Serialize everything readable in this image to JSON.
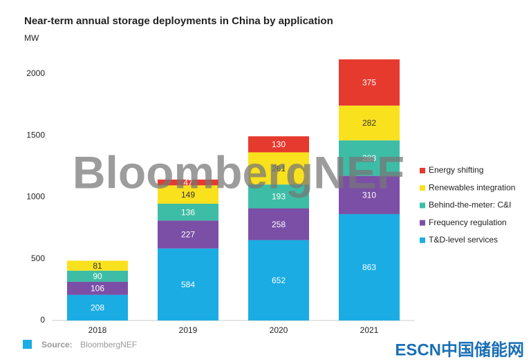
{
  "chart_data": {
    "type": "stacked_bar",
    "title": "Near-term annual storage deployments in China by application",
    "y_label": "MW",
    "watermark": "BloombergNEF",
    "source_label": "Source:",
    "source": "BloombergNEF",
    "logo": "ESCN中国储能网",
    "categories": [
      "2018",
      "2019",
      "2020",
      "2021"
    ],
    "series": [
      {
        "name": "T&D-level services",
        "color": "#1aace3",
        "values": [
          208,
          584,
          652,
          863
        ]
      },
      {
        "name": "Frequency regulation",
        "color": "#7b4fa6",
        "values": [
          106,
          227,
          258,
          310
        ]
      },
      {
        "name": "Behind-the-meter: C&I",
        "color": "#3dbda5",
        "values": [
          90,
          136,
          193,
          288
        ]
      },
      {
        "name": "Renewables integration",
        "color": "#f9e11e",
        "values": [
          81,
          149,
          261,
          282
        ]
      },
      {
        "name": "Energy shifting",
        "color": "#e63a2e",
        "values": [
          null,
          47,
          130,
          375
        ]
      }
    ],
    "ylim": [
      0,
      2200
    ],
    "yticks": [
      0,
      500,
      1000,
      1500,
      2000
    ],
    "grid": false
  }
}
